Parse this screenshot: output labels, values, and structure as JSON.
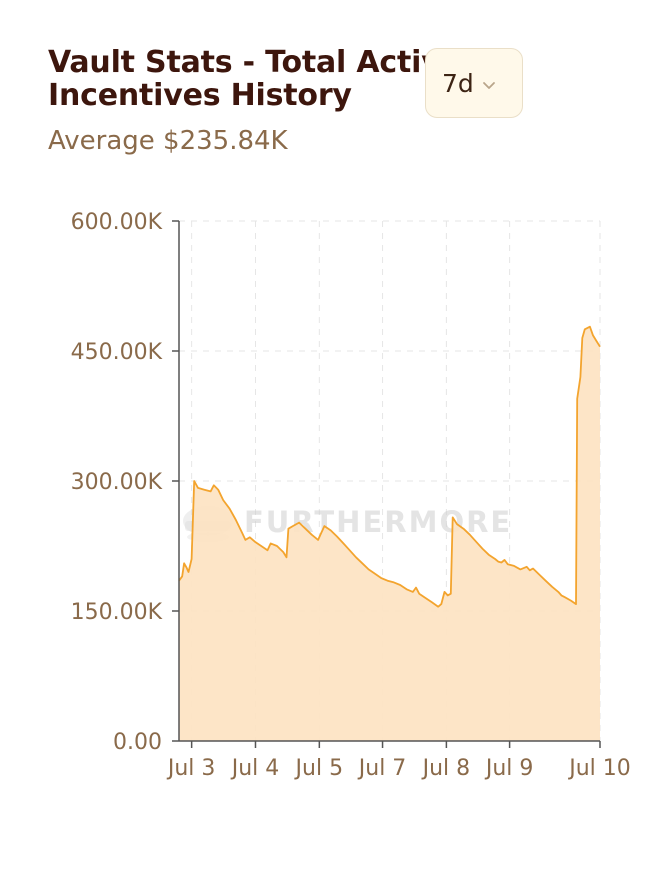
{
  "title": "Vault Stats - Total Active Incentives History",
  "subtitle": "Average $235.84K",
  "period_select": {
    "value": "7d",
    "icon": "chevron-down-icon"
  },
  "watermark": "FURTHERMORE",
  "colors": {
    "line": "#f3a42e",
    "fill": "#fde3c2",
    "title": "#3d160d",
    "text": "#8a6a4a",
    "grid": "#e6e6e6",
    "axis": "#555555"
  },
  "chart_data": {
    "type": "area",
    "title": "Vault Stats - Total Active Incentives History",
    "subtitle": "Average $235.84K",
    "xlabel": "",
    "ylabel": "",
    "grid": true,
    "y_ticks": [
      "0.00",
      "150.00K",
      "300.00K",
      "450.00K",
      "600.00K"
    ],
    "y_tick_values": [
      0,
      150000,
      300000,
      450000,
      600000
    ],
    "ylim": [
      0,
      600000
    ],
    "x_ticks": [
      "Jul 3",
      "Jul 4",
      "Jul 5",
      "Jul 7",
      "Jul 8",
      "Jul 9",
      "Jul 10"
    ],
    "xlim": [
      0,
      6.66
    ],
    "x_tick_positions": [
      0.2,
      1.21,
      2.22,
      3.22,
      4.23,
      5.23,
      6.66
    ],
    "series": [
      {
        "values": [
          [
            0.0,
            185000
          ],
          [
            0.05,
            190000
          ],
          [
            0.08,
            205000
          ],
          [
            0.12,
            200000
          ],
          [
            0.15,
            195000
          ],
          [
            0.2,
            210000
          ],
          [
            0.24,
            300000
          ],
          [
            0.3,
            292000
          ],
          [
            0.4,
            290000
          ],
          [
            0.5,
            288000
          ],
          [
            0.55,
            295000
          ],
          [
            0.62,
            290000
          ],
          [
            0.7,
            278000
          ],
          [
            0.8,
            268000
          ],
          [
            0.9,
            255000
          ],
          [
            1.0,
            240000
          ],
          [
            1.05,
            232000
          ],
          [
            1.12,
            235000
          ],
          [
            1.2,
            230000
          ],
          [
            1.3,
            225000
          ],
          [
            1.4,
            220000
          ],
          [
            1.45,
            228000
          ],
          [
            1.55,
            225000
          ],
          [
            1.65,
            218000
          ],
          [
            1.7,
            212000
          ],
          [
            1.73,
            245000
          ],
          [
            1.8,
            248000
          ],
          [
            1.9,
            252000
          ],
          [
            2.0,
            245000
          ],
          [
            2.1,
            238000
          ],
          [
            2.2,
            232000
          ],
          [
            2.25,
            240000
          ],
          [
            2.3,
            248000
          ],
          [
            2.4,
            243000
          ],
          [
            2.5,
            236000
          ],
          [
            2.6,
            228000
          ],
          [
            2.7,
            220000
          ],
          [
            2.8,
            212000
          ],
          [
            2.9,
            205000
          ],
          [
            3.0,
            198000
          ],
          [
            3.1,
            193000
          ],
          [
            3.2,
            188000
          ],
          [
            3.3,
            185000
          ],
          [
            3.4,
            183000
          ],
          [
            3.5,
            180000
          ],
          [
            3.6,
            175000
          ],
          [
            3.7,
            172000
          ],
          [
            3.75,
            177000
          ],
          [
            3.8,
            170000
          ],
          [
            3.9,
            165000
          ],
          [
            4.0,
            160000
          ],
          [
            4.1,
            155000
          ],
          [
            4.15,
            158000
          ],
          [
            4.2,
            172000
          ],
          [
            4.25,
            168000
          ],
          [
            4.3,
            170000
          ],
          [
            4.33,
            258000
          ],
          [
            4.4,
            250000
          ],
          [
            4.5,
            245000
          ],
          [
            4.6,
            238000
          ],
          [
            4.7,
            230000
          ],
          [
            4.8,
            222000
          ],
          [
            4.9,
            215000
          ],
          [
            5.0,
            210000
          ],
          [
            5.05,
            207000
          ],
          [
            5.1,
            206000
          ],
          [
            5.15,
            209000
          ],
          [
            5.2,
            204000
          ],
          [
            5.3,
            202000
          ],
          [
            5.35,
            200000
          ],
          [
            5.4,
            198000
          ],
          [
            5.5,
            201000
          ],
          [
            5.55,
            197000
          ],
          [
            5.6,
            199000
          ],
          [
            5.7,
            192000
          ],
          [
            5.8,
            185000
          ],
          [
            5.9,
            178000
          ],
          [
            6.0,
            172000
          ],
          [
            6.05,
            168000
          ],
          [
            6.1,
            166000
          ],
          [
            6.2,
            162000
          ],
          [
            6.28,
            158000
          ],
          [
            6.3,
            395000
          ],
          [
            6.35,
            420000
          ],
          [
            6.38,
            465000
          ],
          [
            6.42,
            475000
          ],
          [
            6.5,
            478000
          ],
          [
            6.55,
            468000
          ],
          [
            6.6,
            462000
          ],
          [
            6.66,
            455000
          ]
        ]
      }
    ]
  }
}
